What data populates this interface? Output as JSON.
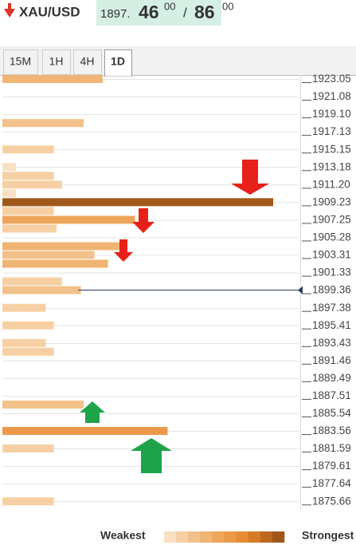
{
  "header": {
    "symbol": "XAU/USD",
    "price_prefix": "1897.",
    "bid": "46",
    "bid_sup": "00",
    "separator": "/",
    "ask": "86",
    "ask_sup": "00"
  },
  "tabs": [
    "15M",
    "1H",
    "4H",
    "1D"
  ],
  "active_tab": 3,
  "chart_data": {
    "type": "bar",
    "orientation": "horizontal",
    "y": [
      1923.05,
      1918.11,
      1915.15,
      1913.18,
      1912.19,
      1911.2,
      1910.22,
      1909.23,
      1908.24,
      1907.25,
      1906.27,
      1904.29,
      1903.31,
      1902.32,
      1900.34,
      1899.36,
      1897.38,
      1895.41,
      1893.43,
      1892.45,
      1886.52,
      1883.56,
      1881.59,
      1875.66
    ],
    "values": [
      3.7,
      3.0,
      1.9,
      0.5,
      1.9,
      2.2,
      0.5,
      10,
      1.9,
      4.9,
      2.0,
      4.4,
      3.4,
      3.9,
      2.2,
      2.9,
      1.6,
      1.9,
      1.6,
      1.9,
      3.0,
      6.1,
      1.9,
      1.9
    ],
    "xlim": [
      0,
      10
    ],
    "ylim": [
      1923.5,
      1874.7
    ],
    "yticks": [
      1923.05,
      1921.08,
      {
        "value": 1919.1,
        "label": "1919.10"
      },
      1917.13,
      1915.15,
      1913.18,
      {
        "value": 1911.2,
        "label": "1911.20"
      },
      1909.23,
      1907.25,
      1905.28,
      1903.31,
      1901.33,
      1899.36,
      1897.38,
      1895.41,
      1893.43,
      1891.46,
      1889.49,
      1887.51,
      1885.54,
      1883.56,
      1881.59,
      1879.61,
      1877.64,
      1875.66
    ],
    "current_price": 1899.36,
    "grid": true,
    "colors": [
      "#f9e0c4",
      "#f6d0a4",
      "#f3c18c",
      "#f0b574",
      "#eea65c",
      "#eb9948",
      "#e88b32",
      "#d67a26",
      "#bc681e",
      "#a0581a"
    ],
    "legend": {
      "low": "Weakest",
      "high": "Strongest"
    }
  }
}
